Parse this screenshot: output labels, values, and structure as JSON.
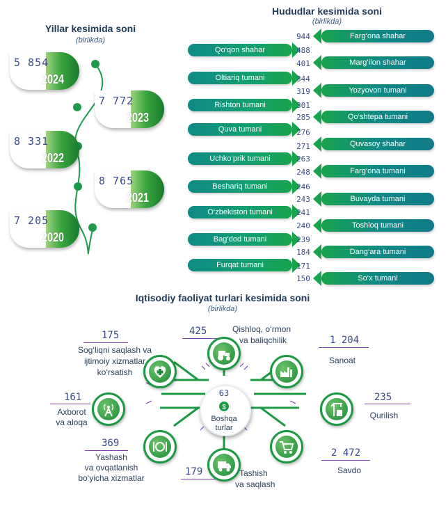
{
  "years": {
    "title": "Yillar kesimida soni",
    "subtitle": "(birlikda)",
    "items": [
      {
        "year": "2024",
        "value": "5 854"
      },
      {
        "year": "2023",
        "value": "7 772"
      },
      {
        "year": "2022",
        "value": "8 331"
      },
      {
        "year": "2021",
        "value": "8 765"
      },
      {
        "year": "2020",
        "value": "7 205"
      }
    ]
  },
  "regions": {
    "title": "Hududlar kesimida soni",
    "subtitle": "(birlikda)",
    "items": [
      {
        "name": "Farg‘ona shahar",
        "value": "944"
      },
      {
        "name": "Qo‘qon shahar",
        "value": "488"
      },
      {
        "name": "Marg‘ilon shahar",
        "value": "401"
      },
      {
        "name": "Oltiariq tumani",
        "value": "344"
      },
      {
        "name": "Yozyovon tumani",
        "value": "319"
      },
      {
        "name": "Rishton tumani",
        "value": "301"
      },
      {
        "name": "Qo‘shtepa tumani",
        "value": "285"
      },
      {
        "name": "Quva tumani",
        "value": "276"
      },
      {
        "name": "Quvasoy shahar",
        "value": "271"
      },
      {
        "name": "Uchko‘prik tumani",
        "value": "263"
      },
      {
        "name": "Farg‘ona tumani",
        "value": "248"
      },
      {
        "name": "Beshariq tumani",
        "value": "246"
      },
      {
        "name": "Buvayda tumani",
        "value": "243"
      },
      {
        "name": "O‘zbekiston tumani",
        "value": "241"
      },
      {
        "name": "Toshloq tumani",
        "value": "240"
      },
      {
        "name": "Bag‘dod tumani",
        "value": "239"
      },
      {
        "name": "Dang‘ara tumani",
        "value": "184"
      },
      {
        "name": "Furqat tumani",
        "value": "171"
      },
      {
        "name": "So‘x tumani",
        "value": "150"
      }
    ]
  },
  "activity": {
    "title": "Iqtisodiy faoliyat turlari kesimida soni",
    "subtitle": "(birlikda)",
    "center": {
      "value": "63",
      "label1": "Boshqa",
      "label2": "turlar"
    },
    "health": {
      "value": "175",
      "line1": "Sog‘liqni saqlash va",
      "line2": "ijtimoiy xizmatlar",
      "line3": "ko‘rsatish"
    },
    "agri": {
      "value": "425",
      "line1": "Qishloq, o‘rmon",
      "line2": "va baliqchilik"
    },
    "industry": {
      "value": "1 204",
      "line1": "Sanoat"
    },
    "info": {
      "value": "161",
      "line1": "Axborot",
      "line2": "va aloqa"
    },
    "construction": {
      "value": "235",
      "line1": "Qurilish"
    },
    "hospitality": {
      "value": "369",
      "line1": "Yashash",
      "line2": "va ovqatlanish",
      "line3": "bo‘yicha xizmatlar"
    },
    "transport": {
      "value": "179",
      "line1": "Tashish",
      "line2": "va saqlash"
    },
    "trade": {
      "value": "2 472",
      "line1": "Savdo"
    }
  },
  "colors": {
    "green": "#1c9a43",
    "teal": "#0f8a86",
    "purple": "#7e3fb0",
    "navy": "#1f3b57"
  }
}
